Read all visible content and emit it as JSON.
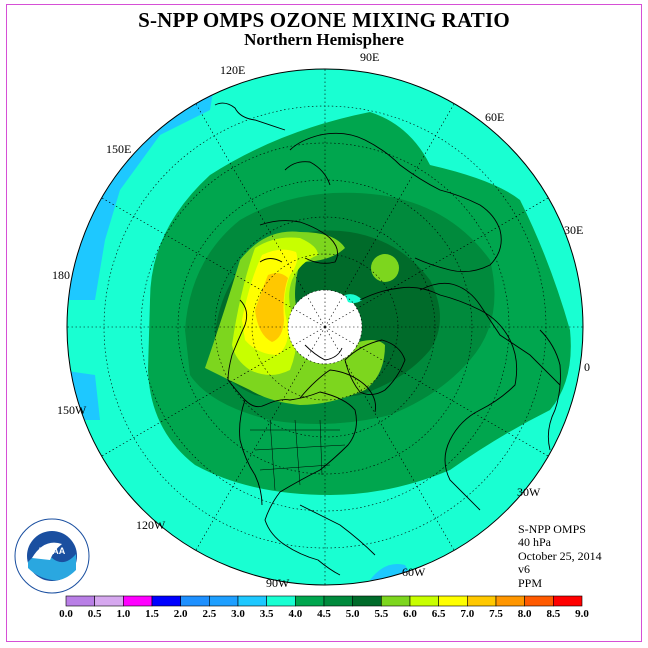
{
  "title": "S-NPP OMPS OZONE MIXING RATIO",
  "subtitle": "Northern Hemisphere",
  "longitude_labels": {
    "lon_90e": "90E",
    "lon_120e": "120E",
    "lon_60e": "60E",
    "lon_150e": "150E",
    "lon_30e": "30E",
    "lon_180": "180",
    "lon_0": "0",
    "lon_150w": "150W",
    "lon_30w": "30W",
    "lon_120w": "120W",
    "lon_60w": "60W",
    "lon_90w": "90W"
  },
  "info": {
    "instrument": "S-NPP OMPS",
    "pressure": "40 hPa",
    "date": "October 25, 2014",
    "version": "v6",
    "units": "PPM"
  },
  "colorbar": {
    "ticks": [
      "0.0",
      "0.5",
      "1.0",
      "1.5",
      "2.0",
      "2.5",
      "3.0",
      "3.5",
      "4.0",
      "4.5",
      "5.0",
      "5.5",
      "6.0",
      "6.5",
      "7.0",
      "7.5",
      "8.0",
      "8.5",
      "9.0"
    ],
    "colors": [
      "#b97fe6",
      "#d6a8ef",
      "#ff00ff",
      "#0000ff",
      "#1e90ff",
      "#1e9fff",
      "#1ec8ff",
      "#19ffd2",
      "#00a64e",
      "#008a3c",
      "#006b2a",
      "#7dd61e",
      "#c8ff00",
      "#ffff00",
      "#ffc800",
      "#ff9600",
      "#ff5a00",
      "#ff0000",
      "#8b5a2b"
    ]
  },
  "logo": {
    "text": "NOAA"
  }
}
